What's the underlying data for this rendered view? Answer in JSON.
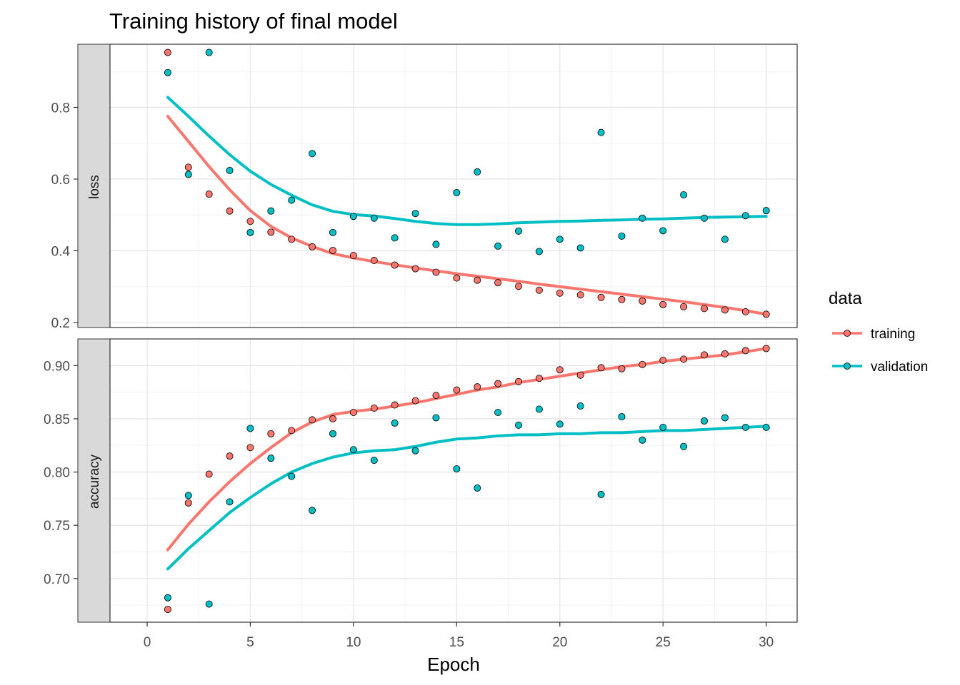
{
  "chart_data": {
    "type": "scatter",
    "title": "Training history of final model",
    "xlabel": "Epoch",
    "xlim": [
      -1.8,
      31.5
    ],
    "xticks": [
      0,
      5,
      10,
      15,
      20,
      25,
      30
    ],
    "x": [
      1,
      2,
      3,
      4,
      5,
      6,
      7,
      8,
      9,
      10,
      11,
      12,
      13,
      14,
      15,
      16,
      17,
      18,
      19,
      20,
      21,
      22,
      23,
      24,
      25,
      26,
      27,
      28,
      29,
      30
    ],
    "grid": true,
    "smoothed_lines": true,
    "legend": {
      "title": "data",
      "position": "right",
      "entries": [
        {
          "label": "training",
          "color": "#F8766D"
        },
        {
          "label": "validation",
          "color": "#00BFC4"
        }
      ]
    },
    "facets": [
      {
        "strip_label": "loss",
        "ylim": [
          0.186,
          0.976
        ],
        "yticks": [
          0.2,
          0.4,
          0.6,
          0.8
        ],
        "yticklabels": [
          "0.2",
          "0.4",
          "0.6",
          "0.8"
        ],
        "series": [
          {
            "name": "training",
            "color": "#F8766D",
            "values": [
              0.953,
              0.633,
              0.558,
              0.511,
              0.482,
              0.452,
              0.432,
              0.411,
              0.401,
              0.387,
              0.373,
              0.36,
              0.35,
              0.34,
              0.324,
              0.318,
              0.311,
              0.301,
              0.29,
              0.282,
              0.277,
              0.27,
              0.264,
              0.26,
              0.25,
              0.244,
              0.239,
              0.235,
              0.23,
              0.223
            ],
            "smooth": [
              0.775,
              0.705,
              0.635,
              0.57,
              0.512,
              0.468,
              0.436,
              0.412,
              0.392,
              0.38,
              0.37,
              0.361,
              0.352,
              0.344,
              0.336,
              0.329,
              0.322,
              0.315,
              0.307,
              0.3,
              0.293,
              0.286,
              0.279,
              0.272,
              0.265,
              0.258,
              0.25,
              0.242,
              0.233,
              0.223
            ]
          },
          {
            "name": "validation",
            "color": "#00BFC4",
            "values": [
              0.897,
              0.613,
              0.953,
              0.624,
              0.451,
              0.511,
              0.541,
              0.671,
              0.451,
              0.496,
              0.491,
              0.436,
              0.504,
              0.418,
              0.562,
              0.62,
              0.413,
              0.455,
              0.398,
              0.432,
              0.408,
              0.73,
              0.441,
              0.491,
              0.456,
              0.556,
              0.491,
              0.432,
              0.498,
              0.512
            ],
            "smooth": [
              0.828,
              0.775,
              0.72,
              0.668,
              0.622,
              0.585,
              0.555,
              0.528,
              0.51,
              0.501,
              0.497,
              0.49,
              0.482,
              0.476,
              0.473,
              0.473,
              0.475,
              0.478,
              0.48,
              0.482,
              0.483,
              0.485,
              0.486,
              0.488,
              0.489,
              0.491,
              0.493,
              0.494,
              0.495,
              0.496
            ]
          }
        ]
      },
      {
        "strip_label": "accuracy",
        "ylim": [
          0.659,
          0.925
        ],
        "yticks": [
          0.7,
          0.75,
          0.8,
          0.85,
          0.9
        ],
        "yticklabels": [
          "0.70",
          "0.75",
          "0.80",
          "0.85",
          "0.90"
        ],
        "series": [
          {
            "name": "training",
            "color": "#F8766D",
            "values": [
              0.671,
              0.771,
              0.798,
              0.815,
              0.823,
              0.836,
              0.839,
              0.849,
              0.85,
              0.856,
              0.86,
              0.863,
              0.867,
              0.872,
              0.877,
              0.88,
              0.883,
              0.885,
              0.888,
              0.896,
              0.891,
              0.898,
              0.897,
              0.901,
              0.905,
              0.906,
              0.91,
              0.911,
              0.914,
              0.916
            ],
            "smooth": [
              0.727,
              0.751,
              0.772,
              0.791,
              0.808,
              0.823,
              0.837,
              0.847,
              0.854,
              0.857,
              0.859,
              0.862,
              0.865,
              0.869,
              0.873,
              0.877,
              0.88,
              0.884,
              0.887,
              0.89,
              0.893,
              0.896,
              0.899,
              0.901,
              0.904,
              0.906,
              0.908,
              0.91,
              0.913,
              0.916
            ]
          },
          {
            "name": "validation",
            "color": "#00BFC4",
            "values": [
              0.682,
              0.778,
              0.676,
              0.772,
              0.841,
              0.813,
              0.796,
              0.764,
              0.836,
              0.821,
              0.811,
              0.846,
              0.82,
              0.851,
              0.803,
              0.785,
              0.856,
              0.844,
              0.859,
              0.845,
              0.862,
              0.779,
              0.852,
              0.83,
              0.842,
              0.824,
              0.848,
              0.851,
              0.842,
              0.842
            ]
          },
          {
            "name": "validation_smooth",
            "color": "#00BFC4",
            "values": [],
            "smooth": [
              0.709,
              0.728,
              0.745,
              0.762,
              0.776,
              0.789,
              0.8,
              0.808,
              0.814,
              0.818,
              0.82,
              0.821,
              0.824,
              0.828,
              0.831,
              0.832,
              0.834,
              0.835,
              0.835,
              0.836,
              0.836,
              0.837,
              0.837,
              0.838,
              0.839,
              0.839,
              0.84,
              0.841,
              0.842,
              0.843
            ]
          }
        ]
      }
    ]
  }
}
